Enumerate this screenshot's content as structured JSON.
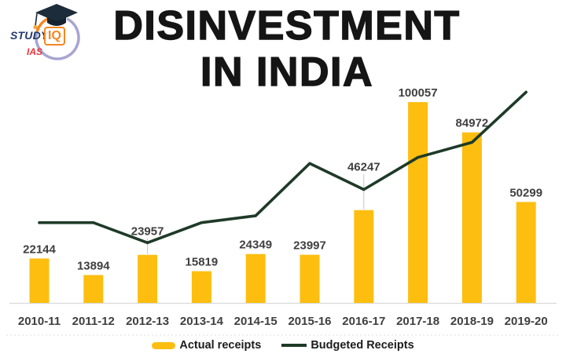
{
  "logo": {
    "study": "STUDY",
    "iq": "IQ",
    "ias": "IAS"
  },
  "title": {
    "line1": "DISINVESTMENT",
    "line2": "IN INDIA"
  },
  "chart_data": {
    "type": "bar+line",
    "title": "DISINVESTMENT IN INDIA",
    "categories": [
      "2010-11",
      "2011-12",
      "2012-13",
      "2013-14",
      "2014-15",
      "2015-16",
      "2016-17",
      "2017-18",
      "2018-19",
      "2019-20"
    ],
    "series": [
      {
        "name": "Actual receipts",
        "chart_type": "bar",
        "color": "#fdbe10",
        "data_labels": true,
        "values": [
          22144,
          13894,
          23957,
          15819,
          24349,
          23997,
          46247,
          100057,
          84972,
          50299
        ]
      },
      {
        "name": "Budgeted Receipts",
        "chart_type": "line",
        "color": "#1e3a28",
        "data_labels": false,
        "estimated_from_pixels": true,
        "values": [
          40000,
          40000,
          30000,
          40000,
          43425,
          69500,
          56500,
          72500,
          80000,
          105000
        ]
      }
    ],
    "xlabel": "",
    "ylabel": "",
    "ylim": [
      0,
      115000
    ],
    "grid": false,
    "y_axis_visible": false,
    "legend_position": "bottom",
    "label_color": "#3f3f3f",
    "axis_line_color": "#d9d9d9",
    "leader_line_color": "#c6c6c6"
  }
}
